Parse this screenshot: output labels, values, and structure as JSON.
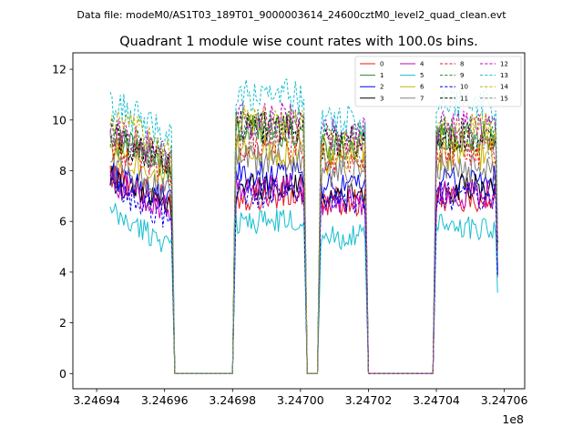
{
  "figure": {
    "suptitle": "Data file: modeM0/AS1T03_189T01_9000003614_24600cztM0_level2_quad_clean.evt",
    "title": "Quadrant 1 module wise count rates with 100.0s bins.",
    "x_offset_label": "1e8"
  },
  "chart_data": {
    "type": "line",
    "title": "Quadrant 1 module wise count rates with 100.0s bins.",
    "xlabel": "",
    "ylabel": "",
    "x_unit_multiplier": 100000000,
    "xlim": [
      3.246933,
      3.247066
    ],
    "ylim": [
      -0.6,
      12.65
    ],
    "x_ticks": [
      3.24694,
      3.24696,
      3.24698,
      3.247,
      3.24702,
      3.24704,
      3.24706
    ],
    "x_tick_labels": [
      "3.24694",
      "3.24696",
      "3.24698",
      "3.24700",
      "3.24702",
      "3.24704",
      "3.24706"
    ],
    "y_ticks": [
      0,
      2,
      4,
      6,
      8,
      10,
      12
    ],
    "y_tick_labels": [
      "0",
      "2",
      "4",
      "6",
      "8",
      "10",
      "12"
    ],
    "grid": false,
    "legend_position": "top-right",
    "legend_columns": 4,
    "segments": [
      {
        "start": 3.246944,
        "end": 3.246962
      },
      {
        "start": 3.246981,
        "end": 3.247001
      },
      {
        "start": 3.247006,
        "end": 3.247019
      },
      {
        "start": 3.24704,
        "end": 3.247058
      }
    ],
    "x_gap_points": [
      3.246963,
      3.246964,
      3.24698,
      3.247002,
      3.247004,
      3.247005,
      3.24702,
      3.247021,
      3.247039
    ],
    "series": [
      {
        "name": "0",
        "color": "#e41a1c",
        "dashed": false,
        "levels": [
          7.2,
          7.0,
          6.8,
          6.9
        ]
      },
      {
        "name": "1",
        "color": "#228b22",
        "dashed": false,
        "levels": [
          8.6,
          9.6,
          9.0,
          9.2
        ]
      },
      {
        "name": "2",
        "color": "#0000ee",
        "dashed": false,
        "levels": [
          7.2,
          7.8,
          7.3,
          7.6
        ]
      },
      {
        "name": "3",
        "color": "#000000",
        "dashed": false,
        "levels": [
          7.0,
          7.4,
          7.0,
          7.3
        ]
      },
      {
        "name": "4",
        "color": "#c000c0",
        "dashed": false,
        "levels": [
          6.9,
          7.3,
          6.8,
          7.1
        ]
      },
      {
        "name": "5",
        "color": "#17becf",
        "dashed": false,
        "levels": [
          5.6,
          6.0,
          5.4,
          5.8
        ]
      },
      {
        "name": "6",
        "color": "#c8b400",
        "dashed": false,
        "levels": [
          8.2,
          8.8,
          8.3,
          8.6
        ]
      },
      {
        "name": "7",
        "color": "#808080",
        "dashed": false,
        "levels": [
          7.6,
          8.4,
          7.9,
          8.1
        ]
      },
      {
        "name": "8",
        "color": "#e41a1c",
        "dashed": true,
        "levels": [
          8.4,
          9.0,
          8.5,
          8.8
        ]
      },
      {
        "name": "9",
        "color": "#228b22",
        "dashed": true,
        "levels": [
          8.9,
          9.8,
          9.3,
          9.5
        ]
      },
      {
        "name": "10",
        "color": "#0000ee",
        "dashed": true,
        "levels": [
          6.6,
          7.1,
          6.7,
          7.0
        ]
      },
      {
        "name": "11",
        "color": "#000000",
        "dashed": true,
        "levels": [
          8.7,
          9.7,
          9.1,
          9.4
        ]
      },
      {
        "name": "12",
        "color": "#c000c0",
        "dashed": true,
        "levels": [
          9.0,
          10.0,
          9.4,
          9.7
        ]
      },
      {
        "name": "13",
        "color": "#17becf",
        "dashed": true,
        "levels": [
          9.9,
          10.9,
          10.0,
          10.7
        ]
      },
      {
        "name": "14",
        "color": "#c8b400",
        "dashed": true,
        "levels": [
          9.3,
          9.9,
          9.0,
          9.6
        ]
      },
      {
        "name": "15",
        "color": "#808080",
        "dashed": true,
        "levels": [
          8.8,
          9.4,
          8.8,
          9.1
        ]
      }
    ]
  }
}
